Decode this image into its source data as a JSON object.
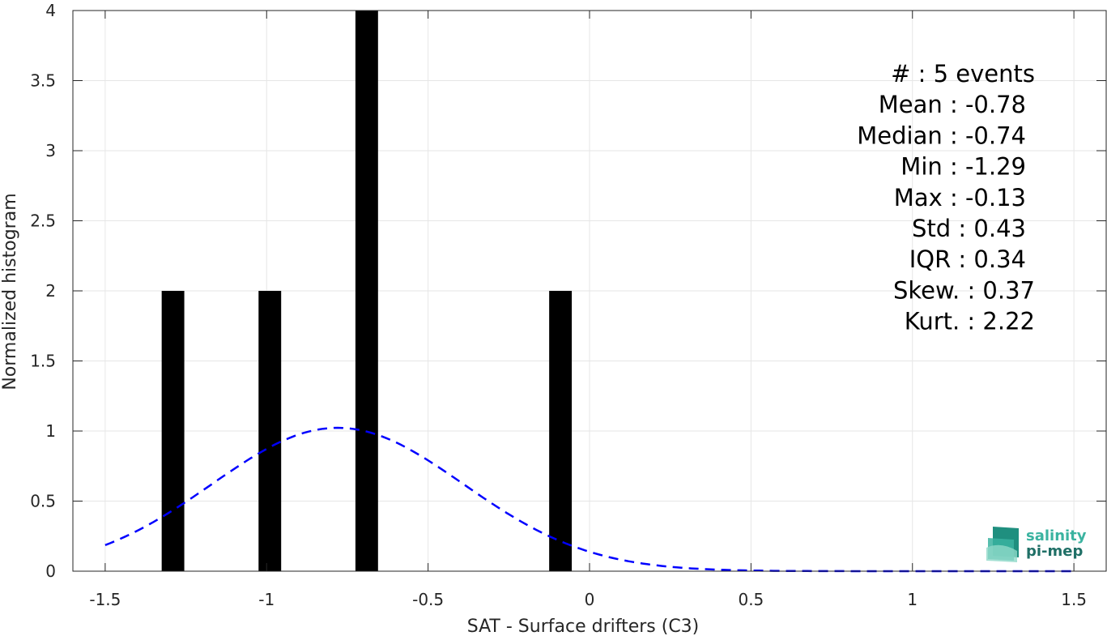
{
  "chart_data": {
    "type": "bar",
    "xlabel": "SAT - Surface drifters (C3)",
    "ylabel": "Normalized histogram",
    "xlim": [
      -1.6,
      1.6
    ],
    "ylim": [
      0,
      4
    ],
    "grid": true,
    "x_ticks": [
      "-1.5",
      "-1",
      "-0.5",
      "0",
      "0.5",
      "1",
      "1.5"
    ],
    "y_ticks": [
      "0",
      "0.5",
      "1",
      "1.5",
      "2",
      "2.5",
      "3",
      "3.5",
      "4"
    ],
    "bar_width": 0.07,
    "series": [
      {
        "type": "bar",
        "color": "#000000",
        "x": [
          -1.29,
          -0.99,
          -0.69,
          -0.09
        ],
        "values": [
          2,
          2,
          4,
          2
        ]
      },
      {
        "type": "line",
        "style": "dashed",
        "color": "#0000ff",
        "fit": "normal",
        "mean": -0.78,
        "std": 0.39,
        "x_range": [
          -1.5,
          1.5
        ]
      }
    ],
    "annotations": [
      "#  : 5 events",
      "Mean : -0.78",
      "Median : -0.74",
      "Min : -1.29",
      "Max : -0.13",
      "Std : 0.43",
      "IQR : 0.34",
      "Skew. : 0.37",
      "Kurt. : 2.22"
    ]
  },
  "logo": {
    "line1": "salinity",
    "line2": "pi-mep",
    "color1": "#3ab3a0",
    "color2": "#1f6f66"
  }
}
